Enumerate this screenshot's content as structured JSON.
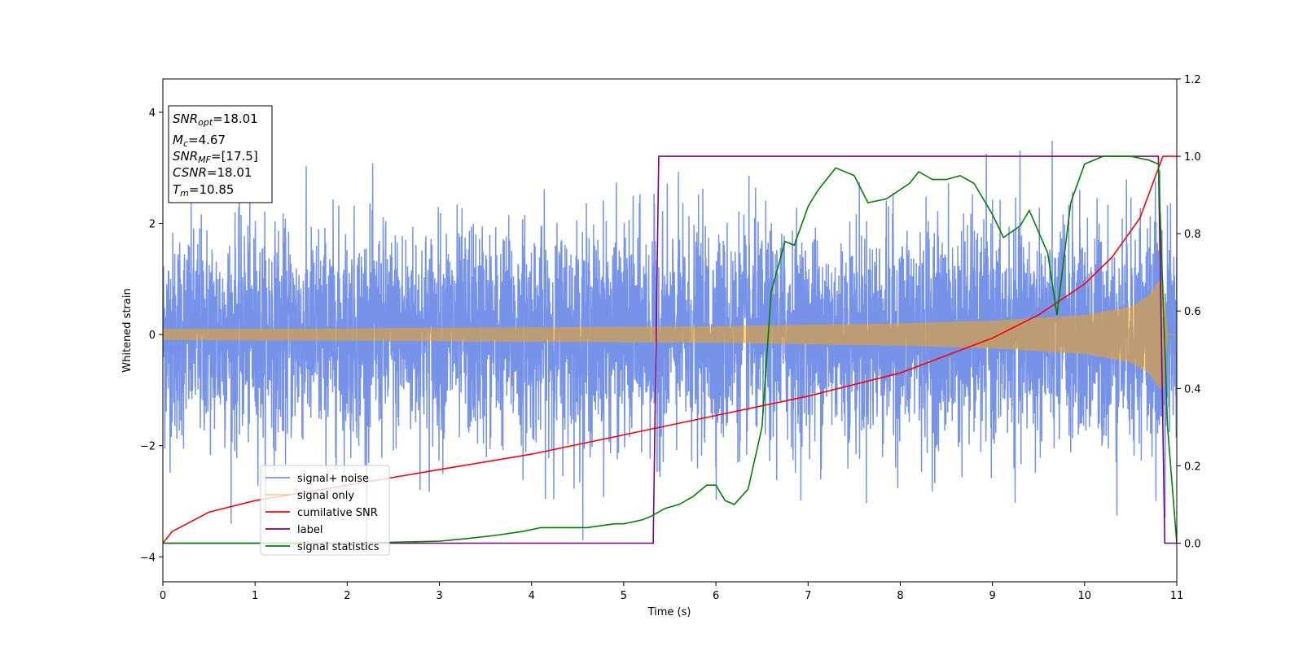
{
  "chart_data": {
    "type": "line",
    "xlabel": "Time (s)",
    "ylabel": "Whitened strain",
    "xlim": [
      0,
      11
    ],
    "ylim_left": [
      -4.45,
      4.6
    ],
    "ylim_right": [
      -0.1,
      1.2
    ],
    "x_ticks": [
      0,
      1,
      2,
      3,
      4,
      5,
      6,
      7,
      8,
      9,
      10,
      11
    ],
    "y_ticks_left": [
      -4,
      -2,
      0,
      2,
      4
    ],
    "y_ticks_right": [
      "0.0",
      "0.2",
      "0.4",
      "0.6",
      "0.8",
      "1.0",
      "1.2"
    ],
    "legend_position": "lower-left",
    "annotations": {
      "snr_opt": {
        "base": "SNR",
        "sub": "opt",
        "value": "=18.01"
      },
      "mc": {
        "base": "M",
        "sub": "c",
        "value": "=4.67"
      },
      "snr_mf": {
        "base": "SNR",
        "sub": "MF",
        "value": "=[17.5]"
      },
      "csnr": {
        "base": "CSNR",
        "sub": "",
        "value": "=18.01"
      },
      "tm": {
        "base": "T",
        "sub": "m",
        "value": "=10.85"
      }
    },
    "series": [
      {
        "name": "signal+ noise",
        "color": "#4169e1",
        "axis": "left",
        "description_values": {
          "noise_sigma": 0.95,
          "typical_envelope": [
            -3,
            3.6
          ]
        }
      },
      {
        "name": "signal only",
        "color": "#ffa500",
        "axis": "left",
        "envelope": {
          "x": [
            0,
            2,
            4,
            6,
            8,
            9,
            10,
            10.5,
            10.7,
            10.8,
            10.85,
            10.9,
            11
          ],
          "amp": [
            0.1,
            0.11,
            0.13,
            0.15,
            0.2,
            0.25,
            0.35,
            0.5,
            0.7,
            0.95,
            1.0,
            0.0,
            0.0
          ]
        }
      },
      {
        "name": "cumilative SNR",
        "color": "#ff0000",
        "axis": "right",
        "x": [
          0,
          0.1,
          0.5,
          1,
          2,
          3,
          4,
          5,
          6,
          7,
          8,
          9,
          9.5,
          10,
          10.3,
          10.6,
          10.85,
          11
        ],
        "y": [
          0.0,
          0.03,
          0.08,
          0.11,
          0.15,
          0.19,
          0.23,
          0.28,
          0.33,
          0.38,
          0.44,
          0.53,
          0.59,
          0.67,
          0.74,
          0.84,
          1.0,
          1.0
        ]
      },
      {
        "name": "label",
        "color": "#800080",
        "axis": "right",
        "x": [
          0,
          5.32,
          5.38,
          10.8,
          10.87,
          11
        ],
        "y": [
          0,
          0,
          1,
          1,
          0,
          0
        ]
      },
      {
        "name": "signal statistics",
        "color": "#008000",
        "axis": "right",
        "x": [
          0,
          2,
          3,
          3.3,
          3.6,
          3.9,
          4.1,
          4.3,
          4.6,
          4.9,
          5.0,
          5.2,
          5.3,
          5.45,
          5.6,
          5.75,
          5.9,
          6.0,
          6.1,
          6.2,
          6.35,
          6.5,
          6.6,
          6.75,
          6.85,
          7.0,
          7.1,
          7.3,
          7.5,
          7.65,
          7.85,
          8.1,
          8.2,
          8.35,
          8.5,
          8.65,
          8.8,
          9.0,
          9.12,
          9.3,
          9.4,
          9.6,
          9.7,
          9.85,
          10.0,
          10.2,
          10.5,
          10.7,
          10.8,
          10.9,
          11
        ],
        "y": [
          0,
          0,
          0.005,
          0.012,
          0.02,
          0.03,
          0.04,
          0.04,
          0.04,
          0.05,
          0.05,
          0.06,
          0.07,
          0.09,
          0.1,
          0.12,
          0.15,
          0.15,
          0.11,
          0.1,
          0.14,
          0.3,
          0.65,
          0.78,
          0.77,
          0.87,
          0.91,
          0.97,
          0.95,
          0.88,
          0.89,
          0.93,
          0.96,
          0.94,
          0.94,
          0.95,
          0.93,
          0.85,
          0.79,
          0.82,
          0.86,
          0.75,
          0.59,
          0.88,
          0.98,
          1.0,
          1.0,
          0.99,
          0.98,
          0.3,
          0.0
        ]
      }
    ]
  }
}
